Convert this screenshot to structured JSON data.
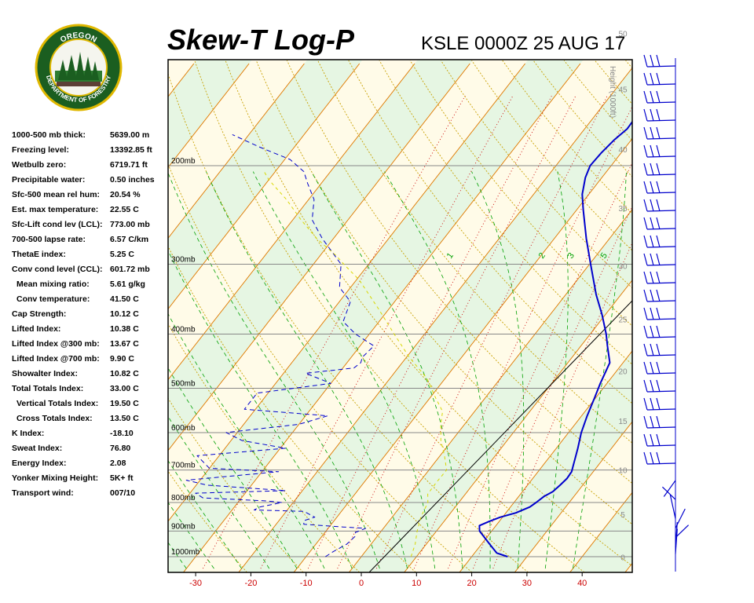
{
  "header": {
    "title": "Skew-T Log-P",
    "subtitle": "KSLE 0000Z 25 AUG 17"
  },
  "logo": {
    "text_top": "OREGON",
    "text_bottom": "DEPARTMENT OF FORESTRY"
  },
  "stats": [
    {
      "label": "1000-500 mb thick:",
      "value": "5639.00 m",
      "indent": false
    },
    {
      "label": "Freezing level:",
      "value": "13392.85 ft",
      "indent": false
    },
    {
      "label": "Wetbulb zero:",
      "value": "6719.71 ft",
      "indent": false
    },
    {
      "label": "Precipitable water:",
      "value": "0.50 inches",
      "indent": false
    },
    {
      "label": "Sfc-500 mean rel hum:",
      "value": "20.54 %",
      "indent": false
    },
    {
      "label": "Est. max temperature:",
      "value": "22.55 C",
      "indent": false
    },
    {
      "label": "Sfc-Lift cond lev (LCL):",
      "value": "773.00 mb",
      "indent": false
    },
    {
      "label": "700-500 lapse rate:",
      "value": "6.57 C/km",
      "indent": false
    },
    {
      "label": "ThetaE index:",
      "value": "5.25 C",
      "indent": false
    },
    {
      "label": "Conv cond level (CCL):",
      "value": "601.72 mb",
      "indent": false
    },
    {
      "label": "Mean mixing ratio:",
      "value": "5.61 g/kg",
      "indent": true
    },
    {
      "label": "Conv temperature:",
      "value": "41.50 C",
      "indent": true
    },
    {
      "label": "Cap Strength:",
      "value": "10.12 C",
      "indent": false
    },
    {
      "label": "Lifted Index:",
      "value": "10.38 C",
      "indent": false
    },
    {
      "label": "Lifted Index @300 mb:",
      "value": "13.67 C",
      "indent": false
    },
    {
      "label": "Lifted Index @700 mb:",
      "value": "9.90 C",
      "indent": false
    },
    {
      "label": "Showalter Index:",
      "value": "10.82 C",
      "indent": false
    },
    {
      "label": "Total Totals Index:",
      "value": "33.00 C",
      "indent": false
    },
    {
      "label": "Vertical Totals Index:",
      "value": "19.50 C",
      "indent": true
    },
    {
      "label": "Cross Totals Index:",
      "value": "13.50 C",
      "indent": true
    },
    {
      "label": "K Index:",
      "value": "-18.10",
      "indent": false
    },
    {
      "label": "Sweat Index:",
      "value": "76.80",
      "indent": false
    },
    {
      "label": "Energy Index:",
      "value": "2.08",
      "indent": false
    },
    {
      "label": "Yonker Mixing Height:",
      "value": "5K+ ft",
      "indent": false
    },
    {
      "label": "Transport wind:",
      "value": "007/10",
      "indent": false
    }
  ],
  "chart_data": {
    "type": "line",
    "title": "Skew-T Log-P",
    "xlim": [
      -34,
      50
    ],
    "ylim_mb": [
      1050,
      120
    ],
    "x_ticks": [
      -30,
      -20,
      -10,
      0,
      10,
      20,
      30,
      40
    ],
    "pressure_levels": [
      {
        "mb": 1000,
        "label": "1000mb"
      },
      {
        "mb": 900,
        "label": "900mb"
      },
      {
        "mb": 800,
        "label": "800mb"
      },
      {
        "mb": 700,
        "label": "700mb"
      },
      {
        "mb": 600,
        "label": "600mb"
      },
      {
        "mb": 500,
        "label": "500mb"
      },
      {
        "mb": 400,
        "label": "400mb"
      },
      {
        "mb": 300,
        "label": "300mb"
      },
      {
        "mb": 200,
        "label": "200mb"
      }
    ],
    "height_axis": {
      "label": "Height (1000ft)",
      "ticks": [
        {
          "kft": 0,
          "mb": 1002
        },
        {
          "kft": 5,
          "mb": 840
        },
        {
          "kft": 10,
          "mb": 700
        },
        {
          "kft": 15,
          "mb": 572
        },
        {
          "kft": 20,
          "mb": 466
        },
        {
          "kft": 25,
          "mb": 376
        },
        {
          "kft": 30,
          "mb": 302
        },
        {
          "kft": 35,
          "mb": 238
        },
        {
          "kft": 40,
          "mb": 187
        },
        {
          "kft": 45,
          "mb": 146
        },
        {
          "kft": 50,
          "mb": 116
        }
      ]
    },
    "mixing_ratio_labels": [
      "1",
      "2",
      "3",
      "5"
    ],
    "series": [
      {
        "name": "Temperature",
        "color": "#0000cc",
        "points": [
          [
            1000,
            26.5
          ],
          [
            985,
            24.0
          ],
          [
            950,
            21.5
          ],
          [
            900,
            17.8
          ],
          [
            880,
            17.0
          ],
          [
            865,
            18.2
          ],
          [
            850,
            19.6
          ],
          [
            835,
            21.8
          ],
          [
            815,
            23.5
          ],
          [
            800,
            24.0
          ],
          [
            780,
            24.6
          ],
          [
            765,
            25.5
          ],
          [
            745,
            25.9
          ],
          [
            725,
            26.2
          ],
          [
            705,
            26.1
          ],
          [
            690,
            25.6
          ],
          [
            660,
            24.6
          ],
          [
            640,
            23.9
          ],
          [
            600,
            22.3
          ],
          [
            560,
            21.0
          ],
          [
            520,
            19.8
          ],
          [
            490,
            18.8
          ],
          [
            450,
            17.6
          ],
          [
            420,
            14.8
          ],
          [
            400,
            12.9
          ],
          [
            370,
            9.5
          ],
          [
            340,
            5.5
          ],
          [
            300,
            0.2
          ],
          [
            270,
            -4.2
          ],
          [
            240,
            -8.8
          ],
          [
            225,
            -11.2
          ],
          [
            210,
            -13.0
          ],
          [
            200,
            -13.8
          ],
          [
            190,
            -13.6
          ],
          [
            180,
            -13.1
          ],
          [
            172,
            -12.3
          ],
          [
            165,
            -12.4
          ],
          [
            160,
            -11.8
          ],
          [
            152,
            -12.6
          ],
          [
            148,
            -11.8
          ]
        ]
      },
      {
        "name": "Dewpoint",
        "color": "#0000cc",
        "dash": "6,4",
        "points": [
          [
            1000,
            -6.5
          ],
          [
            980,
            -5.8
          ],
          [
            950,
            -4.4
          ],
          [
            920,
            -4.0
          ],
          [
            905,
            -4.5
          ],
          [
            890,
            -3.2
          ],
          [
            885,
            -7.5
          ],
          [
            875,
            -15.0
          ],
          [
            862,
            -15.5
          ],
          [
            850,
            -14.0
          ],
          [
            830,
            -16.8
          ],
          [
            825,
            -26.0
          ],
          [
            815,
            -25.4
          ],
          [
            800,
            -22.0
          ],
          [
            795,
            -25.0
          ],
          [
            785,
            -37.0
          ],
          [
            770,
            -39.0
          ],
          [
            762,
            -23.0
          ],
          [
            745,
            -38.0
          ],
          [
            730,
            -42.5
          ],
          [
            705,
            -27.0
          ],
          [
            695,
            -40.0
          ],
          [
            660,
            -44.0
          ],
          [
            640,
            -29.0
          ],
          [
            620,
            -38.0
          ],
          [
            600,
            -42.0
          ],
          [
            580,
            -30.0
          ],
          [
            560,
            -26.0
          ],
          [
            545,
            -42.0
          ],
          [
            510,
            -42.0
          ],
          [
            490,
            -30.0
          ],
          [
            470,
            -36.0
          ],
          [
            460,
            -28.0
          ],
          [
            450,
            -27.5
          ],
          [
            440,
            -28.0
          ],
          [
            420,
            -27.5
          ],
          [
            400,
            -32.5
          ],
          [
            380,
            -36.5
          ],
          [
            370,
            -37.0
          ],
          [
            350,
            -38.0
          ],
          [
            330,
            -42.0
          ],
          [
            300,
            -45.0
          ],
          [
            270,
            -52.0
          ],
          [
            250,
            -56.5
          ],
          [
            230,
            -59.0
          ],
          [
            215,
            -62.5
          ],
          [
            205,
            -64.8
          ],
          [
            195,
            -69.0
          ],
          [
            185,
            -76.5
          ],
          [
            176,
            -83.0
          ]
        ]
      },
      {
        "name": "Parcel",
        "color": "#d8d800",
        "dash": "4,4",
        "points": [
          [
            1000,
            9.0
          ],
          [
            950,
            8.0
          ],
          [
            900,
            6.5
          ],
          [
            850,
            5.2
          ],
          [
            800,
            4.4
          ],
          [
            773,
            3.2
          ],
          [
            740,
            3.1
          ],
          [
            700,
            3.2
          ],
          [
            660,
            0.8
          ],
          [
            620,
            -2.0
          ],
          [
            580,
            -4.3
          ],
          [
            550,
            -5.8
          ],
          [
            520,
            -9.0
          ],
          [
            480,
            -13.3
          ],
          [
            440,
            -19.5
          ],
          [
            400,
            -25.5
          ],
          [
            360,
            -32.0
          ],
          [
            320,
            -39.5
          ],
          [
            300,
            -44.5
          ],
          [
            290,
            -47.0
          ],
          [
            270,
            -53.0
          ],
          [
            250,
            -58.5
          ],
          [
            230,
            -64.0
          ],
          [
            212,
            -70.0
          ],
          [
            205,
            -72.0
          ]
        ]
      }
    ],
    "wind_barbs": [
      {
        "kft": 0.3,
        "dir": 7,
        "kt": 10
      },
      {
        "kft": 1,
        "dir": 7,
        "kt": 10
      },
      {
        "kft": 2,
        "dir": 60,
        "kt": 10
      },
      {
        "kft": 3,
        "dir": 40,
        "kt": 10
      },
      {
        "kft": 4,
        "dir": 340,
        "kt": 20
      },
      {
        "kft": 6,
        "dir": 300,
        "kt": 15
      },
      {
        "kft": 8,
        "dir": 230,
        "kt": 25
      }
    ]
  }
}
